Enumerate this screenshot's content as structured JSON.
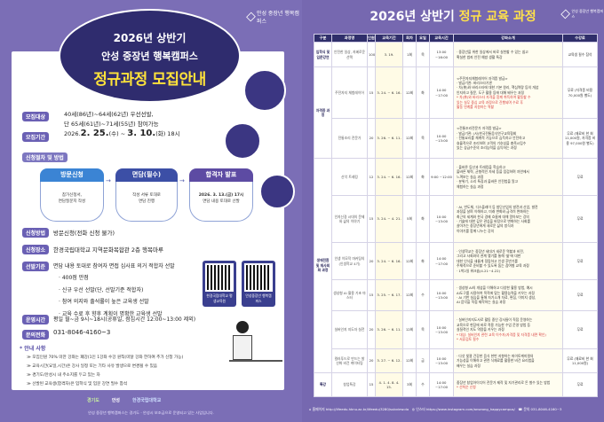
{
  "left": {
    "logo_text": "안성 중장년 행복캠퍼스",
    "title_line1": "2026년 상반기",
    "title_line2": "안성 중장년 행복캠퍼스",
    "title_line3": "정규과정 모집안내",
    "target_label": "모집대상",
    "target_line1": "40세(86년)~64세(62년) 우선선발,",
    "target_line2": "단 65세(61년)~71세(55년) 참여가능",
    "period_label": "모집기간",
    "period_prefix": "2026.",
    "period_start": "2. 25.",
    "period_start_day": "(수)",
    "period_sep": "~",
    "period_end": "3. 10.",
    "period_end_day": "(화) 18시",
    "procedure_label": "신청절차 및 방법",
    "steps": [
      {
        "title": "방문신청",
        "line1": "참가신청서,",
        "line2": "면담질문지 작성",
        "color": "#3b84d4"
      },
      {
        "title": "면담(필수)",
        "line1": "작성 서류 토대로",
        "line2": "면담 진행",
        "color": "#3c4fa6"
      },
      {
        "title": "합격자 발표",
        "line1": "2026. 3. 13.(금) 17시",
        "line2": "면담 내용 토대로 선발",
        "color": "#5d4ba3"
      }
    ],
    "method_label": "신청방법",
    "method_text": "방문신청(전화 신청 불가)",
    "place_label": "신청장소",
    "place_text": "한경국립대학교 지역문화복합관 2층 행복마루",
    "criteria_label": "선발기준",
    "criteria_text": "면담 내용 토대로 참여자 면접 심사표 의거 적합자 선발",
    "criteria_items": [
      "· 400점 만점",
      "· 신규 우선 선발(단, 선발기준 적합자)",
      "· 참여 의지와 출석률이 높은 교육생 선발",
      "· 교육 수료 후 향후 계획이 명확한 교육생 선발"
    ],
    "qr1_label": "한경국립대학교 평생교육원",
    "qr2_label": "안성중장년 행복캠퍼스",
    "hours_label": "운영시간",
    "hours_text": "평일 월~금 9시~18시(공휴일, 점심시간 12:00~13:00 제외)",
    "contact_label": "문의전화",
    "contact_text": "031-8046-4160~3",
    "notice_title": "* 안내 사항",
    "notices": [
      "≫ 모집인원 70% 미만 강좌는 폐강(1인 1강좌 수강 원칙(미달 강좌 한하여 추가 신청 가능)",
      "≫ 교육시간(요일,시간)은 강사 일정 또는 기타 사유 발생으로 변경될 수 있음",
      "≫ 경기도/안성시 내 주소지를 두고 있는 자",
      "≫ 선발된 교육생(합격자)은 입학식 및 입문 강연 필수 참석"
    ],
    "sponsor1": "경기도",
    "sponsor2": "안성",
    "sponsor3": "한경국립대학교",
    "footer": "안성 중장년 행복캠퍼스는 경기도 · 안성시 보조금으로 운영되고 있는 사업입니다."
  },
  "right": {
    "title_white": "2026년 상반기 ",
    "title_yellow": "정규 교육 과정",
    "logo_text": "안성 중장년 행복캠퍼스",
    "headers": [
      "구분",
      "과정명",
      "인원",
      "교육기간",
      "회차",
      "요일",
      "교육시간",
      "강좌소개",
      "수강료"
    ],
    "rows": [
      {
        "group": "입학식 및 입문강연",
        "span": 1,
        "name": "안전한 일상, 지혜로운 선택",
        "count": "100",
        "period": "3. 19.",
        "sessions": "1회",
        "day": "목",
        "time": "13:00 ~16:00",
        "desc": [
          "· 중장년을 위한 일상에서 바로 실천할 수 있는 쉽고",
          "  확실한 범죄 안전 예방 생활 특강"
        ],
        "red": [],
        "fee": "교육생 필수 참석"
      },
      {
        "group": "자격증 과정",
        "span": 2,
        "name": "주전자지 체험레이어",
        "count": "15",
        "period": "3. 24. ~ 6. 16.",
        "sessions": "12회",
        "day": "화",
        "time": "14:00 ~17:00",
        "desc": [
          "<주전자지체험레이어 자격증 발급>",
          "· 발급기관: 바리스타기관",
          "· 차(茶)와 바리스타에 대한 기본 원리, 핵심역량 등의 개념",
          "  인지하고 질문, 도구 활용 등에 대해 배우는 과정"
        ],
        "red": [
          "* 차(茶)와 바리스타 자격을 함께 취득하여 활동할 수",
          "  있는 실무 중심 교육 과정으로 진행되며 수료 후",
          "  활동 연계를 지원하는 역할"
        ],
        "fee": "무료 (자격증 비용 70,000원 별도)"
      },
      {
        "group": "",
        "span": 0,
        "name": "전통조리 전문가",
        "count": "20",
        "period": "3. 26. ~ 6. 11.",
        "sessions": "12회",
        "day": "목",
        "time": "10:00 ~13:00",
        "desc": [
          "<전통조리전문가 자격증 발급>",
          "· 발급기관: (사)한국전통음식연구교육협회",
          "· 전통요리를 체계적 기능으로 습득하고 안전하고",
          "  효율적으로 조리하며 고객의 기호성을 충족시킴수",
          "  있는 상급수준의 조리능력을 습득하는 과정"
        ],
        "red": [],
        "fee": "무료 (재료비 한 회 11,000원, 자격증 비용 97,000원 별도)"
      },
      {
        "group": "생애전환 및 재사회화 과정",
        "span": 6,
        "name": "산악 트레킹",
        "count": "12",
        "period": "3. 24. ~ 6. 16.",
        "sessions": "12회",
        "day": "화",
        "time": "9:00 ~12:00",
        "desc": [
          "· 올바른 등산과 트레킹을 학습하고",
          "  올바른 체력, 균형적인 자세 등을 점검하며 자연에서",
          "  느껴보는 실습 과정",
          "· 분위기, 소리 특징과 올바른 안전법을 알고",
          "  체험하는 실습 과정"
        ],
        "red": [],
        "fee": "무료"
      },
      {
        "group": "",
        "span": 0,
        "name": "인지신경 시대의 문제와 삶의 이야기",
        "count": "15",
        "period": "3. 24. ~ 4. 21.",
        "sessions": "5회",
        "day": "화",
        "time": "10:00 ~13:00",
        "desc": [
          "· AI, 반도체, 디스플레이 등 첨단산업의 발전과 산업, 발전",
          "  과정을 살펴 이해하고, 미래 변화와 급격히 변화하는",
          "  최근의 세계와 한국 경제 흐름에 대해 알아보는 강의",
          "· 기술에 대한 깊은 관심을 바탕으로 변화하는 사회를",
          "  살아가는 중장년에게 새로운 삶의 방식과",
          "  이야기를 함께 나누는 강의"
        ],
        "red": [],
        "fee": "무료"
      },
      {
        "group": "",
        "span": 0,
        "name": "인생 이모작 마커팅의 (인생학교 4기)",
        "count": "20",
        "period": "3. 24. ~ 6. 16.",
        "sessions": "12회",
        "day": "화",
        "time": "14:00 ~17:00",
        "desc": [
          "· 인생학교는 중장년 세대가 새로운 역할과 비전,",
          "  그리고 사회와의 관계 맺기를 통해 '앎'에 대한",
          "  대한 인식을 새롭게 정립하고 인생 후반기를",
          "  주체적으로 준비할 수 있도록 돕는 참여형 교육 과정",
          "· 1박2일 워크숍(4.21~4.22)"
        ],
        "red": [],
        "fee": "무료"
      },
      {
        "group": "",
        "span": 0,
        "name": "생성형 AI 활용 기초 마스터",
        "count": "15",
        "period": "3. 25. ~ 6. 17.",
        "sessions": "12회",
        "day": "수",
        "time": "10:00 ~13:00",
        "desc": [
          "· 생성형 AI의 개념을 이해하고 다양한 활용 방법, 예시",
          "  AI도구를 사용하여 목적에 맞는 활용능력을 키우는 과정",
          "· AI 기반 실습을 통해 자기소개 자료, 편집, 이미지 생성,",
          "  AI 음악을 직접 제작하는 실습 과정"
        ],
        "red": [],
        "fee": "무료"
      },
      {
        "group": "",
        "span": 0,
        "name": "실버인지 지도자 실전",
        "count": "20",
        "period": "3. 26. ~ 6. 11.",
        "sessions": "12회",
        "day": "목",
        "time": "10:00 ~13:00",
        "desc": [
          "· 실버인지지도사로 활동 중인 강사들이 직접 운영하는",
          "  교육으로 현장에 바로 적용 가능한 수업 운영 방법 등",
          "  실질적인 지도 역량을 키우는 과정"
        ],
        "red": [
          "* 대상: 실버인지 관련 교육 이수자(자격증 및 자격증 내면 확인)",
          "* 서류검토 필수"
        ],
        "fee": "무료"
      },
      {
        "group": "",
        "span": 0,
        "name": "컬러푸드로 만드는 발산화 비건 케이터링",
        "count": "20",
        "period": "3. 27. ~ 6. 12.",
        "sessions": "12회",
        "day": "금",
        "time": "10:00 ~13:00",
        "desc": [
          "· 다섯 빛깔 건강한 음식 한번 지향하는 파이토케미컬의",
          "  기능성을 이해하고 관련 식재료를 활용한 비건 요리법을",
          "  배우는 실습 과정"
        ],
        "red": [],
        "fee": "무료 (재료비 한 회 11,000원)"
      },
      {
        "group": "특강",
        "span": 1,
        "name": "창업특강",
        "count": "15",
        "period": "4. 1. 4. 8. 4. 15.",
        "sessions": "3회",
        "day": "수",
        "time": "14:00 ~17:00",
        "desc": [
          "중장년 창업아이디어 전문가 제작 및 자기관리로 돈 벌수 있는 방법"
        ],
        "red": [
          "* 선착순 신청"
        ],
        "fee": "무료"
      }
    ],
    "footer_home": "홈페이지 http://lifeedu.hknu.ac.kr/lifeedu/3280/subview.do",
    "footer_insta": "인스타 https://www.instagram.com/anseong_happycampus/",
    "footer_phone": "문의 031-8046-4160~3"
  },
  "colors": {
    "background": "#7b6eb6",
    "navy": "#2f2c6e",
    "yellow": "#ffe33a",
    "label": "#6a60b4"
  }
}
